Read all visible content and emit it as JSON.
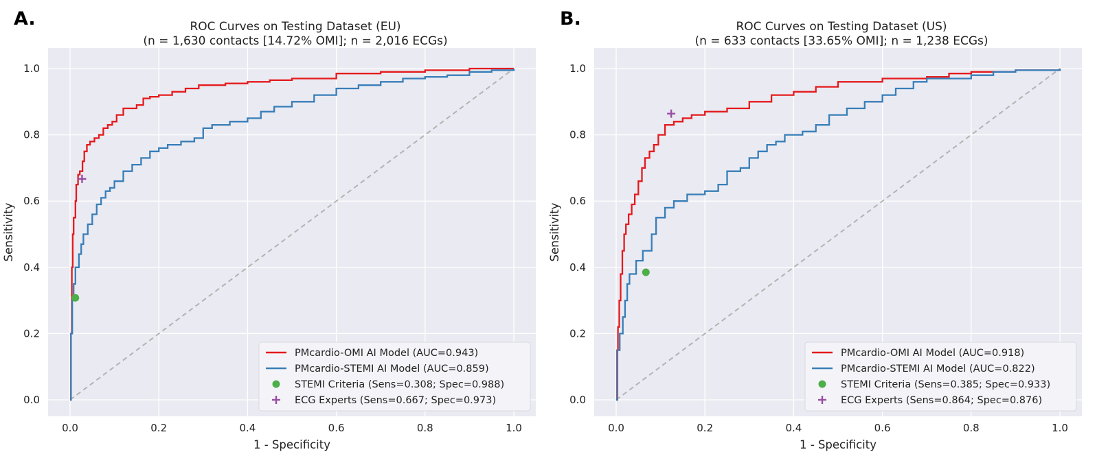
{
  "colors": {
    "omi": "#e41a1c",
    "stemi_model": "#377eb8",
    "stemi_criteria": "#4daf4a",
    "experts": "#984ea3"
  },
  "chart_data": [
    {
      "type": "line",
      "panel_label": "A.",
      "title_line1": "ROC Curves on Testing Dataset (EU)",
      "title_line2": "(n = 1,630 contacts [14.72% OMI]; n = 2,016 ECGs)",
      "xlabel": "1 - Specificity",
      "ylabel": "Sensitivity",
      "xlim": [
        0,
        1
      ],
      "ylim": [
        0,
        1
      ],
      "xticks": [
        "0.0",
        "0.2",
        "0.4",
        "0.6",
        "0.8",
        "1.0"
      ],
      "yticks": [
        "0.0",
        "0.2",
        "0.4",
        "0.6",
        "0.8",
        "1.0"
      ],
      "grid": true,
      "legend_position": "lower-right",
      "series": [
        {
          "name": "PMcardio-OMI AI Model (AUC=0.943)",
          "color_key": "omi",
          "points": [
            [
              0,
              0
            ],
            [
              0.002,
              0.2
            ],
            [
              0.004,
              0.4
            ],
            [
              0.006,
              0.5
            ],
            [
              0.008,
              0.55
            ],
            [
              0.012,
              0.6
            ],
            [
              0.014,
              0.65
            ],
            [
              0.018,
              0.68
            ],
            [
              0.022,
              0.69
            ],
            [
              0.028,
              0.72
            ],
            [
              0.032,
              0.75
            ],
            [
              0.038,
              0.77
            ],
            [
              0.045,
              0.78
            ],
            [
              0.055,
              0.79
            ],
            [
              0.065,
              0.8
            ],
            [
              0.075,
              0.82
            ],
            [
              0.085,
              0.83
            ],
            [
              0.095,
              0.84
            ],
            [
              0.105,
              0.86
            ],
            [
              0.12,
              0.88
            ],
            [
              0.14,
              0.88
            ],
            [
              0.15,
              0.89
            ],
            [
              0.165,
              0.91
            ],
            [
              0.18,
              0.915
            ],
            [
              0.2,
              0.92
            ],
            [
              0.23,
              0.93
            ],
            [
              0.26,
              0.94
            ],
            [
              0.29,
              0.95
            ],
            [
              0.35,
              0.955
            ],
            [
              0.4,
              0.96
            ],
            [
              0.45,
              0.965
            ],
            [
              0.5,
              0.97
            ],
            [
              0.6,
              0.985
            ],
            [
              0.7,
              0.99
            ],
            [
              0.8,
              0.995
            ],
            [
              0.9,
              1.0
            ],
            [
              1.0,
              1.0
            ]
          ]
        },
        {
          "name": "PMcardio-STEMI AI Model (AUC=0.859)",
          "color_key": "stemi_model",
          "points": [
            [
              0,
              0
            ],
            [
              0.002,
              0.2
            ],
            [
              0.005,
              0.3
            ],
            [
              0.008,
              0.35
            ],
            [
              0.012,
              0.4
            ],
            [
              0.02,
              0.44
            ],
            [
              0.025,
              0.47
            ],
            [
              0.03,
              0.5
            ],
            [
              0.04,
              0.53
            ],
            [
              0.05,
              0.56
            ],
            [
              0.06,
              0.59
            ],
            [
              0.07,
              0.61
            ],
            [
              0.08,
              0.63
            ],
            [
              0.09,
              0.64
            ],
            [
              0.1,
              0.66
            ],
            [
              0.12,
              0.69
            ],
            [
              0.14,
              0.71
            ],
            [
              0.16,
              0.73
            ],
            [
              0.18,
              0.75
            ],
            [
              0.2,
              0.76
            ],
            [
              0.22,
              0.77
            ],
            [
              0.25,
              0.78
            ],
            [
              0.28,
              0.79
            ],
            [
              0.3,
              0.82
            ],
            [
              0.32,
              0.83
            ],
            [
              0.36,
              0.84
            ],
            [
              0.4,
              0.85
            ],
            [
              0.43,
              0.87
            ],
            [
              0.46,
              0.885
            ],
            [
              0.5,
              0.9
            ],
            [
              0.55,
              0.92
            ],
            [
              0.6,
              0.94
            ],
            [
              0.65,
              0.95
            ],
            [
              0.7,
              0.96
            ],
            [
              0.75,
              0.97
            ],
            [
              0.8,
              0.975
            ],
            [
              0.85,
              0.98
            ],
            [
              0.9,
              0.99
            ],
            [
              0.95,
              0.995
            ],
            [
              1.0,
              1.0
            ]
          ]
        }
      ],
      "markers": [
        {
          "name": "STEMI Criteria (Sens=0.308; Spec=0.988)",
          "color_key": "stemi_criteria",
          "shape": "circle",
          "x": 0.012,
          "y": 0.308
        },
        {
          "name": "ECG Experts (Sens=0.667; Spec=0.973)",
          "color_key": "experts",
          "shape": "plus",
          "x": 0.027,
          "y": 0.667
        }
      ]
    },
    {
      "type": "line",
      "panel_label": "B.",
      "title_line1": "ROC Curves on Testing Dataset (US)",
      "title_line2": "(n = 633 contacts [33.65% OMI]; n = 1,238 ECGs)",
      "xlabel": "1 - Specificity",
      "ylabel": "Sensitivity",
      "xlim": [
        0,
        1
      ],
      "ylim": [
        0,
        1
      ],
      "xticks": [
        "0.0",
        "0.2",
        "0.4",
        "0.6",
        "0.8",
        "1.0"
      ],
      "yticks": [
        "0.0",
        "0.2",
        "0.4",
        "0.6",
        "0.8",
        "1.0"
      ],
      "grid": true,
      "legend_position": "lower-right",
      "series": [
        {
          "name": "PMcardio-OMI AI Model (AUC=0.918)",
          "color_key": "omi",
          "points": [
            [
              0,
              0
            ],
            [
              0.002,
              0.15
            ],
            [
              0.004,
              0.22
            ],
            [
              0.007,
              0.3
            ],
            [
              0.01,
              0.38
            ],
            [
              0.014,
              0.45
            ],
            [
              0.018,
              0.5
            ],
            [
              0.022,
              0.53
            ],
            [
              0.028,
              0.56
            ],
            [
              0.035,
              0.59
            ],
            [
              0.042,
              0.62
            ],
            [
              0.05,
              0.66
            ],
            [
              0.058,
              0.7
            ],
            [
              0.065,
              0.73
            ],
            [
              0.075,
              0.75
            ],
            [
              0.085,
              0.77
            ],
            [
              0.095,
              0.8
            ],
            [
              0.11,
              0.83
            ],
            [
              0.13,
              0.84
            ],
            [
              0.15,
              0.85
            ],
            [
              0.17,
              0.86
            ],
            [
              0.2,
              0.87
            ],
            [
              0.25,
              0.88
            ],
            [
              0.3,
              0.9
            ],
            [
              0.35,
              0.92
            ],
            [
              0.4,
              0.93
            ],
            [
              0.45,
              0.945
            ],
            [
              0.5,
              0.96
            ],
            [
              0.6,
              0.97
            ],
            [
              0.7,
              0.975
            ],
            [
              0.75,
              0.985
            ],
            [
              0.8,
              0.99
            ],
            [
              0.9,
              0.995
            ],
            [
              1.0,
              1.0
            ]
          ]
        },
        {
          "name": "PMcardio-STEMI AI Model (AUC=0.822)",
          "color_key": "stemi_model",
          "points": [
            [
              0,
              0
            ],
            [
              0.003,
              0.15
            ],
            [
              0.008,
              0.2
            ],
            [
              0.015,
              0.25
            ],
            [
              0.02,
              0.3
            ],
            [
              0.025,
              0.35
            ],
            [
              0.03,
              0.38
            ],
            [
              0.045,
              0.42
            ],
            [
              0.06,
              0.45
            ],
            [
              0.08,
              0.5
            ],
            [
              0.09,
              0.55
            ],
            [
              0.11,
              0.58
            ],
            [
              0.13,
              0.6
            ],
            [
              0.16,
              0.62
            ],
            [
              0.2,
              0.63
            ],
            [
              0.23,
              0.65
            ],
            [
              0.25,
              0.69
            ],
            [
              0.28,
              0.7
            ],
            [
              0.3,
              0.73
            ],
            [
              0.32,
              0.75
            ],
            [
              0.34,
              0.77
            ],
            [
              0.36,
              0.78
            ],
            [
              0.38,
              0.8
            ],
            [
              0.42,
              0.81
            ],
            [
              0.45,
              0.83
            ],
            [
              0.48,
              0.86
            ],
            [
              0.52,
              0.88
            ],
            [
              0.56,
              0.9
            ],
            [
              0.6,
              0.92
            ],
            [
              0.63,
              0.94
            ],
            [
              0.67,
              0.96
            ],
            [
              0.7,
              0.97
            ],
            [
              0.8,
              0.98
            ],
            [
              0.85,
              0.99
            ],
            [
              0.9,
              0.995
            ],
            [
              1.0,
              1.0
            ]
          ]
        }
      ],
      "markers": [
        {
          "name": "STEMI Criteria (Sens=0.385; Spec=0.933)",
          "color_key": "stemi_criteria",
          "shape": "circle",
          "x": 0.067,
          "y": 0.385
        },
        {
          "name": "ECG Experts (Sens=0.864; Spec=0.876)",
          "color_key": "experts",
          "shape": "plus",
          "x": 0.124,
          "y": 0.864
        }
      ]
    }
  ]
}
